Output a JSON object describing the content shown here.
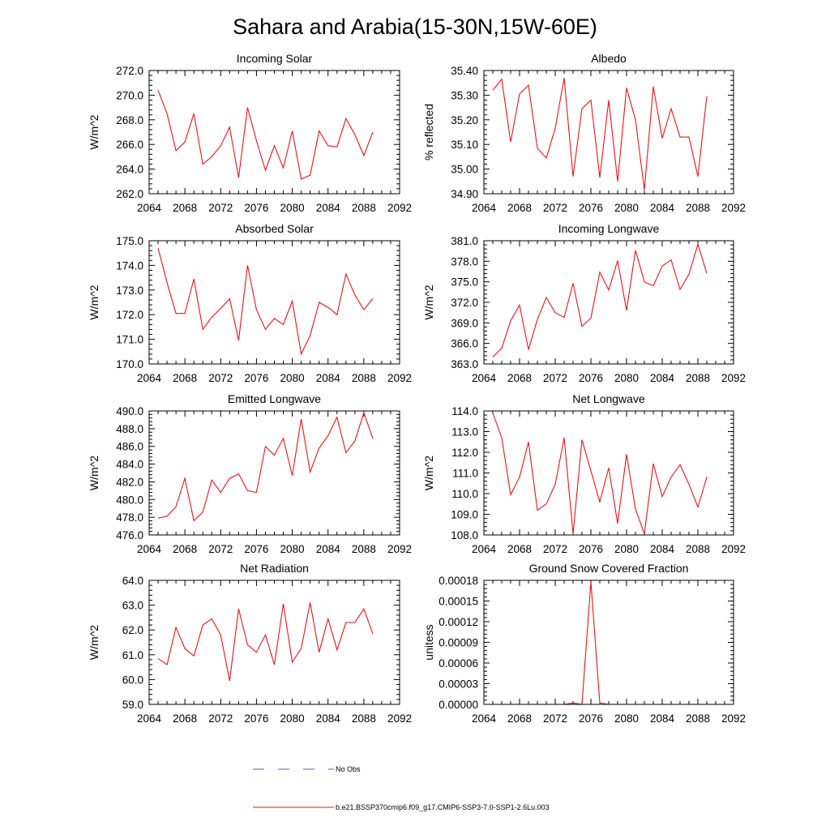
{
  "figure": {
    "title": "Sahara and Arabia(15-30N,15W-60E)"
  },
  "colors": {
    "model": "#e8141c",
    "obs": "#4f5fbf",
    "axis": "#000000"
  },
  "legend": {
    "obs_label": "No Obs",
    "model_label": "b.e21.BSSP370cmip6.f09_g17.CMIP6-SSP3-7.0-SSP1-2.6Lu.003"
  },
  "chart_data": [
    {
      "type": "line",
      "title": "Incoming Solar",
      "ylabel": "W/m^2",
      "xlim": [
        2064,
        2092
      ],
      "ylim": [
        262,
        272
      ],
      "xticks": [
        "2064",
        "2068",
        "2072",
        "2076",
        "2080",
        "2084",
        "2088",
        "2092"
      ],
      "yticks": [
        "262.0",
        "264.0",
        "266.0",
        "268.0",
        "270.0",
        "272.0"
      ],
      "series": [
        {
          "x": [
            2065,
            2066,
            2067,
            2068,
            2069,
            2070,
            2071,
            2072,
            2073,
            2074,
            2075,
            2076,
            2077,
            2078,
            2079,
            2080,
            2081,
            2082,
            2083,
            2084,
            2085,
            2086,
            2087,
            2088,
            2089
          ],
          "values": [
            270.4,
            268.5,
            265.5,
            266.2,
            268.5,
            264.4,
            265.0,
            265.9,
            267.4,
            263.3,
            269.0,
            266.3,
            263.9,
            265.9,
            264.1,
            267.1,
            263.2,
            263.5,
            267.1,
            265.9,
            265.8,
            268.1,
            266.8,
            265.1,
            267.0
          ]
        }
      ]
    },
    {
      "type": "line",
      "title": "Albedo",
      "ylabel": "% reflected",
      "xlim": [
        2064,
        2092
      ],
      "ylim": [
        34.9,
        35.4
      ],
      "xticks": [
        "2064",
        "2068",
        "2072",
        "2076",
        "2080",
        "2084",
        "2088",
        "2092"
      ],
      "yticks": [
        "34.90",
        "35.00",
        "35.10",
        "35.20",
        "35.30",
        "35.40"
      ],
      "series": [
        {
          "x": [
            2065,
            2066,
            2067,
            2068,
            2069,
            2070,
            2071,
            2072,
            2073,
            2074,
            2075,
            2076,
            2077,
            2078,
            2079,
            2080,
            2081,
            2082,
            2083,
            2084,
            2085,
            2086,
            2087,
            2088,
            2089
          ],
          "values": [
            35.32,
            35.365,
            35.11,
            35.305,
            35.34,
            35.085,
            35.045,
            35.165,
            35.37,
            34.97,
            35.245,
            35.28,
            34.965,
            35.28,
            34.95,
            35.33,
            35.2,
            34.915,
            35.335,
            35.125,
            35.245,
            35.13,
            35.13,
            34.97,
            35.295
          ]
        }
      ]
    },
    {
      "type": "line",
      "title": "Absorbed Solar",
      "ylabel": "W/m^2",
      "xlim": [
        2064,
        2092
      ],
      "ylim": [
        170,
        175
      ],
      "xticks": [
        "2064",
        "2068",
        "2072",
        "2076",
        "2080",
        "2084",
        "2088",
        "2092"
      ],
      "yticks": [
        "170.0",
        "171.0",
        "172.0",
        "173.0",
        "174.0",
        "175.0"
      ],
      "series": [
        {
          "x": [
            2065,
            2066,
            2067,
            2068,
            2069,
            2070,
            2071,
            2072,
            2073,
            2074,
            2075,
            2076,
            2077,
            2078,
            2079,
            2080,
            2081,
            2082,
            2083,
            2084,
            2085,
            2086,
            2087,
            2088,
            2089
          ],
          "values": [
            174.7,
            173.3,
            172.05,
            172.05,
            173.45,
            171.4,
            171.9,
            172.25,
            172.65,
            170.95,
            174.0,
            172.2,
            171.4,
            171.85,
            171.6,
            172.55,
            170.4,
            171.15,
            172.5,
            172.3,
            172.0,
            173.65,
            172.8,
            172.2,
            172.65
          ]
        }
      ]
    },
    {
      "type": "line",
      "title": "Incoming Longwave",
      "ylabel": "W/m^2",
      "xlim": [
        2064,
        2092
      ],
      "ylim": [
        363,
        381
      ],
      "xticks": [
        "2064",
        "2068",
        "2072",
        "2076",
        "2080",
        "2084",
        "2088",
        "2092"
      ],
      "yticks": [
        "363.0",
        "366.0",
        "369.0",
        "372.0",
        "375.0",
        "378.0",
        "381.0"
      ],
      "series": [
        {
          "x": [
            2065,
            2066,
            2067,
            2068,
            2069,
            2070,
            2071,
            2072,
            2073,
            2074,
            2075,
            2076,
            2077,
            2078,
            2079,
            2080,
            2081,
            2082,
            2083,
            2084,
            2085,
            2086,
            2087,
            2088,
            2089
          ],
          "values": [
            364.0,
            365.3,
            369.3,
            371.6,
            365.1,
            369.5,
            372.7,
            370.5,
            369.8,
            374.8,
            368.5,
            369.7,
            376.4,
            373.8,
            378.1,
            370.8,
            379.6,
            375.0,
            374.4,
            377.3,
            378.2,
            373.9,
            376.1,
            380.5,
            376.2
          ]
        }
      ]
    },
    {
      "type": "line",
      "title": "Emitted Longwave",
      "ylabel": "W/m^2",
      "xlim": [
        2064,
        2092
      ],
      "ylim": [
        476,
        490
      ],
      "xticks": [
        "2064",
        "2068",
        "2072",
        "2076",
        "2080",
        "2084",
        "2088",
        "2092"
      ],
      "yticks": [
        "476.0",
        "478.0",
        "480.0",
        "482.0",
        "484.0",
        "486.0",
        "488.0",
        "490.0"
      ],
      "series": [
        {
          "x": [
            2065,
            2066,
            2067,
            2068,
            2069,
            2070,
            2071,
            2072,
            2073,
            2074,
            2075,
            2076,
            2077,
            2078,
            2079,
            2080,
            2081,
            2082,
            2083,
            2084,
            2085,
            2086,
            2087,
            2088,
            2089
          ],
          "values": [
            477.9,
            478.1,
            479.2,
            482.4,
            477.6,
            478.6,
            482.2,
            480.8,
            482.4,
            482.9,
            481.0,
            480.8,
            486.0,
            485.0,
            486.9,
            482.7,
            489.1,
            483.1,
            485.8,
            487.2,
            489.3,
            485.3,
            486.6,
            489.8,
            486.9
          ]
        }
      ]
    },
    {
      "type": "line",
      "title": "Net Longwave",
      "ylabel": "W/m^2",
      "xlim": [
        2064,
        2092
      ],
      "ylim": [
        108,
        114
      ],
      "xticks": [
        "2064",
        "2068",
        "2072",
        "2076",
        "2080",
        "2084",
        "2088",
        "2092"
      ],
      "yticks": [
        "108.0",
        "109.0",
        "110.0",
        "111.0",
        "112.0",
        "113.0",
        "114.0"
      ],
      "series": [
        {
          "x": [
            2065,
            2066,
            2067,
            2068,
            2069,
            2070,
            2071,
            2072,
            2073,
            2074,
            2075,
            2076,
            2077,
            2078,
            2079,
            2080,
            2081,
            2082,
            2083,
            2084,
            2085,
            2086,
            2087,
            2088,
            2089
          ],
          "values": [
            113.9,
            112.7,
            109.95,
            110.8,
            112.5,
            109.2,
            109.5,
            110.45,
            112.7,
            108.05,
            112.6,
            111.1,
            109.6,
            111.25,
            108.55,
            111.9,
            109.25,
            108.05,
            111.45,
            109.85,
            110.8,
            111.4,
            110.45,
            109.35,
            110.8
          ]
        }
      ]
    },
    {
      "type": "line",
      "title": "Net Radiation",
      "ylabel": "W/m^2",
      "xlim": [
        2064,
        2092
      ],
      "ylim": [
        59,
        64
      ],
      "xticks": [
        "2064",
        "2068",
        "2072",
        "2076",
        "2080",
        "2084",
        "2088",
        "2092"
      ],
      "yticks": [
        "59.0",
        "60.0",
        "61.0",
        "62.0",
        "63.0",
        "64.0"
      ],
      "series": [
        {
          "x": [
            2065,
            2066,
            2067,
            2068,
            2069,
            2070,
            2071,
            2072,
            2073,
            2074,
            2075,
            2076,
            2077,
            2078,
            2079,
            2080,
            2081,
            2082,
            2083,
            2084,
            2085,
            2086,
            2087,
            2088,
            2089
          ],
          "values": [
            60.85,
            60.6,
            62.1,
            61.25,
            60.95,
            62.2,
            62.45,
            61.8,
            59.95,
            62.85,
            61.4,
            61.1,
            61.8,
            60.6,
            63.05,
            60.7,
            61.25,
            63.1,
            61.1,
            62.45,
            61.2,
            62.3,
            62.3,
            62.85,
            61.85
          ]
        }
      ]
    },
    {
      "type": "line",
      "title": "Ground Snow Covered Fraction",
      "ylabel": "unitess",
      "xlim": [
        2064,
        2092
      ],
      "ylim": [
        0,
        0.00018
      ],
      "xticks": [
        "2064",
        "2068",
        "2072",
        "2076",
        "2080",
        "2084",
        "2088",
        "2092"
      ],
      "yticks": [
        "0.00000",
        "0.00003",
        "0.00006",
        "0.00009",
        "0.00012",
        "0.00015",
        "0.00018"
      ],
      "series": [
        {
          "x": [
            2065,
            2066,
            2067,
            2068,
            2069,
            2070,
            2071,
            2072,
            2073,
            2074,
            2075,
            2076,
            2077,
            2078,
            2079,
            2080,
            2081,
            2082,
            2083,
            2084,
            2085,
            2086,
            2087,
            2088,
            2089
          ],
          "values": [
            0,
            0,
            0,
            0,
            0,
            0,
            0,
            0,
            0,
            2e-06,
            0,
            0.000178,
            2e-06,
            0,
            0,
            0,
            0,
            0,
            0,
            0,
            0,
            0,
            0,
            0,
            0
          ]
        }
      ]
    }
  ]
}
